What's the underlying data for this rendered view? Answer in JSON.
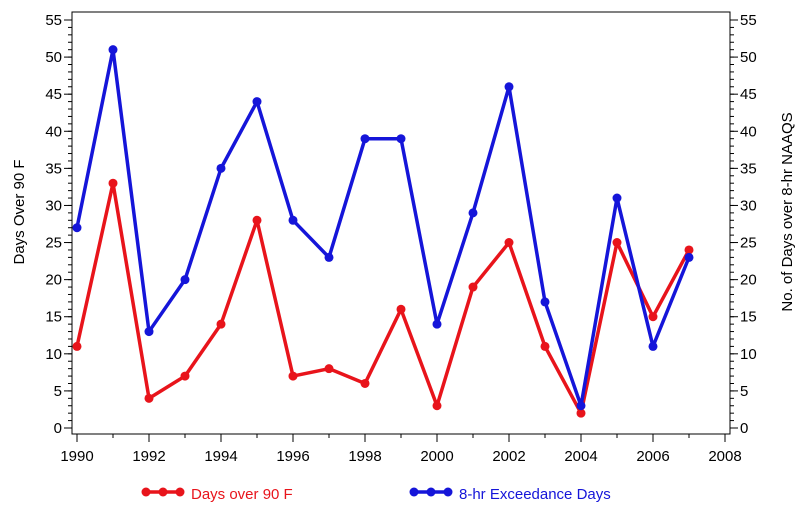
{
  "chart_data": {
    "type": "line",
    "x_axis": {
      "label": "",
      "min": 1990,
      "max": 2008,
      "ticks": [
        1990,
        1992,
        1994,
        1996,
        1998,
        2000,
        2002,
        2004,
        2006,
        2008
      ],
      "minor_step": 1
    },
    "y_left": {
      "label": "Days Over 90 F",
      "min": 0,
      "max": 55,
      "ticks": [
        0,
        5,
        10,
        15,
        20,
        25,
        30,
        35,
        40,
        45,
        50,
        55
      ],
      "minor_step": 1
    },
    "y_right": {
      "label": "No. of Days over 8-hr NAAQS",
      "min": 0,
      "max": 55,
      "ticks": [
        0,
        5,
        10,
        15,
        20,
        25,
        30,
        35,
        40,
        45,
        50,
        55
      ],
      "minor_step": 1
    },
    "x": [
      1990,
      1991,
      1992,
      1993,
      1994,
      1995,
      1996,
      1997,
      1998,
      1999,
      2000,
      2001,
      2002,
      2003,
      2004,
      2005,
      2006,
      2007
    ],
    "series": [
      {
        "name": "Days over 90 F",
        "color": "#e8141b",
        "axis": "left",
        "values": [
          11,
          33,
          4,
          7,
          14,
          28,
          7,
          8,
          6,
          16,
          3,
          19,
          25,
          11,
          2,
          25,
          15,
          24
        ]
      },
      {
        "name": "8-hr Exceedance Days",
        "color": "#1515d9",
        "axis": "right",
        "values": [
          27,
          51,
          13,
          20,
          35,
          44,
          28,
          23,
          39,
          39,
          14,
          29,
          46,
          17,
          3,
          31,
          11,
          23
        ]
      }
    ],
    "grid": false,
    "legend": "bottom"
  }
}
